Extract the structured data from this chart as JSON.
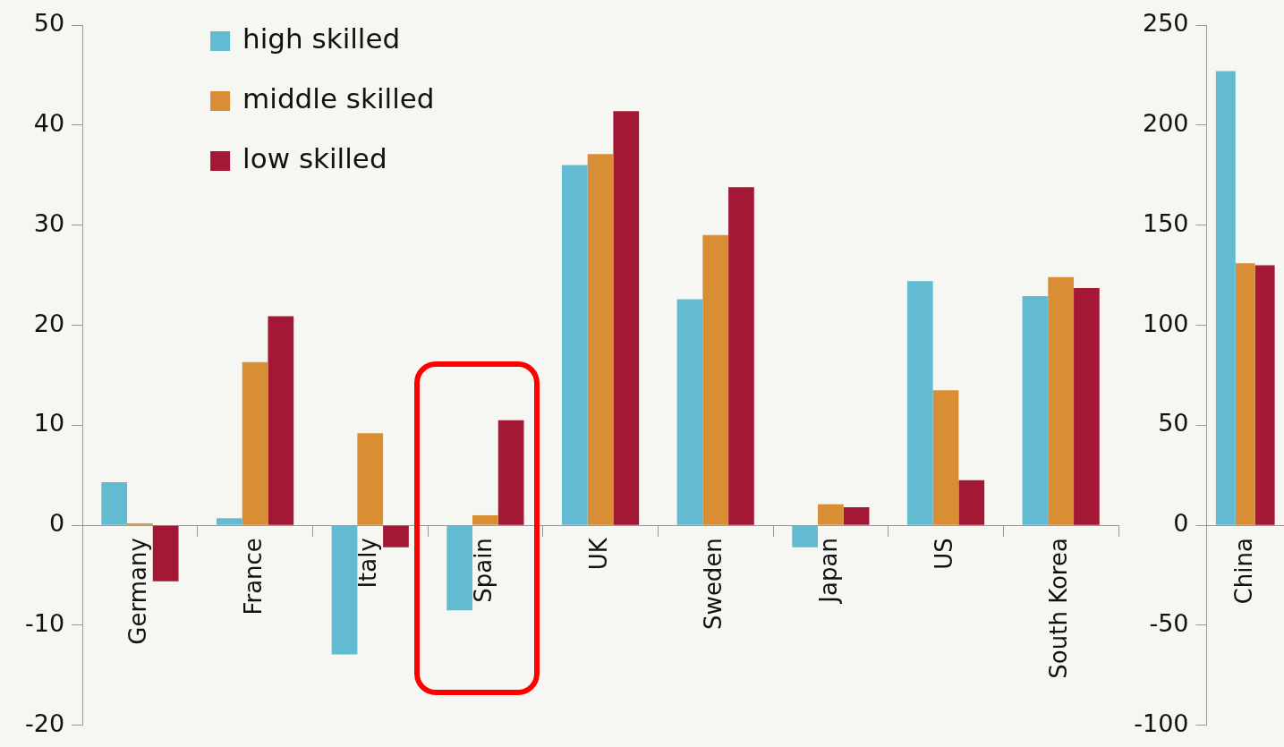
{
  "chart_data": [
    {
      "type": "bar",
      "categories": [
        "Germany",
        "France",
        "Italy",
        "Spain",
        "UK",
        "Sweden",
        "Japan",
        "US",
        "South Korea"
      ],
      "series": [
        {
          "name": "high skilled",
          "color": "#62bbd0",
          "values": [
            4.3,
            0.7,
            -12.9,
            -8.5,
            36.0,
            22.6,
            -2.2,
            24.4,
            22.9
          ]
        },
        {
          "name": "middle skilled",
          "color": "#d98e35",
          "values": [
            0.2,
            16.3,
            9.2,
            1.0,
            37.1,
            29.0,
            2.1,
            13.5,
            24.8
          ]
        },
        {
          "name": "low skilled",
          "color": "#a31834",
          "values": [
            -5.6,
            20.9,
            -2.2,
            10.5,
            41.4,
            33.8,
            1.8,
            4.5,
            23.7
          ]
        }
      ],
      "ylim": [
        -20,
        50
      ],
      "yticks": [
        -20,
        -10,
        0,
        10,
        20,
        30,
        40,
        50
      ],
      "legend": "top left"
    },
    {
      "type": "bar",
      "categories": [
        "China"
      ],
      "series": [
        {
          "color": "#62bbd0",
          "values": [
            227
          ]
        },
        {
          "color": "#d98e35",
          "values": [
            131
          ]
        },
        {
          "color": "#a31834",
          "values": [
            130
          ]
        }
      ],
      "ylim": [
        -100,
        250
      ],
      "yticks": [
        -100,
        -50,
        0,
        50,
        100,
        150,
        200,
        250
      ]
    }
  ]
}
